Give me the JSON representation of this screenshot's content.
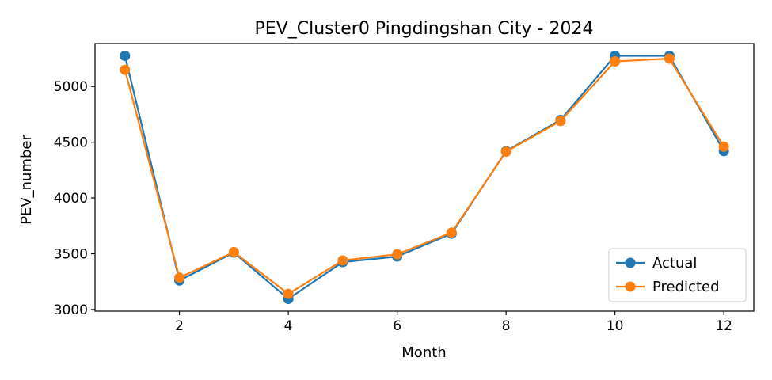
{
  "chart_data": {
    "type": "line",
    "title": "PEV_Cluster0 Pingdingshan City - 2024",
    "xlabel": "Month",
    "ylabel": "PEV_number",
    "x": [
      1,
      2,
      3,
      4,
      5,
      6,
      7,
      8,
      9,
      10,
      11,
      12
    ],
    "xlim": [
      0.45,
      12.55
    ],
    "ylim": [
      2985,
      5385
    ],
    "xticks": [
      2,
      4,
      6,
      8,
      10,
      12
    ],
    "yticks": [
      3000,
      3500,
      4000,
      4500,
      5000
    ],
    "grid": false,
    "legend_position": "lower-right",
    "series": [
      {
        "name": "Actual",
        "color": "#1f77b4",
        "values": [
          5275,
          3260,
          3510,
          3095,
          3425,
          3475,
          3680,
          4420,
          4700,
          5275,
          5275,
          4420
        ]
      },
      {
        "name": "Predicted",
        "color": "#ff7f0e",
        "values": [
          5150,
          3285,
          3515,
          3140,
          3440,
          3495,
          3690,
          4415,
          4690,
          5225,
          5250,
          4460
        ]
      }
    ]
  }
}
